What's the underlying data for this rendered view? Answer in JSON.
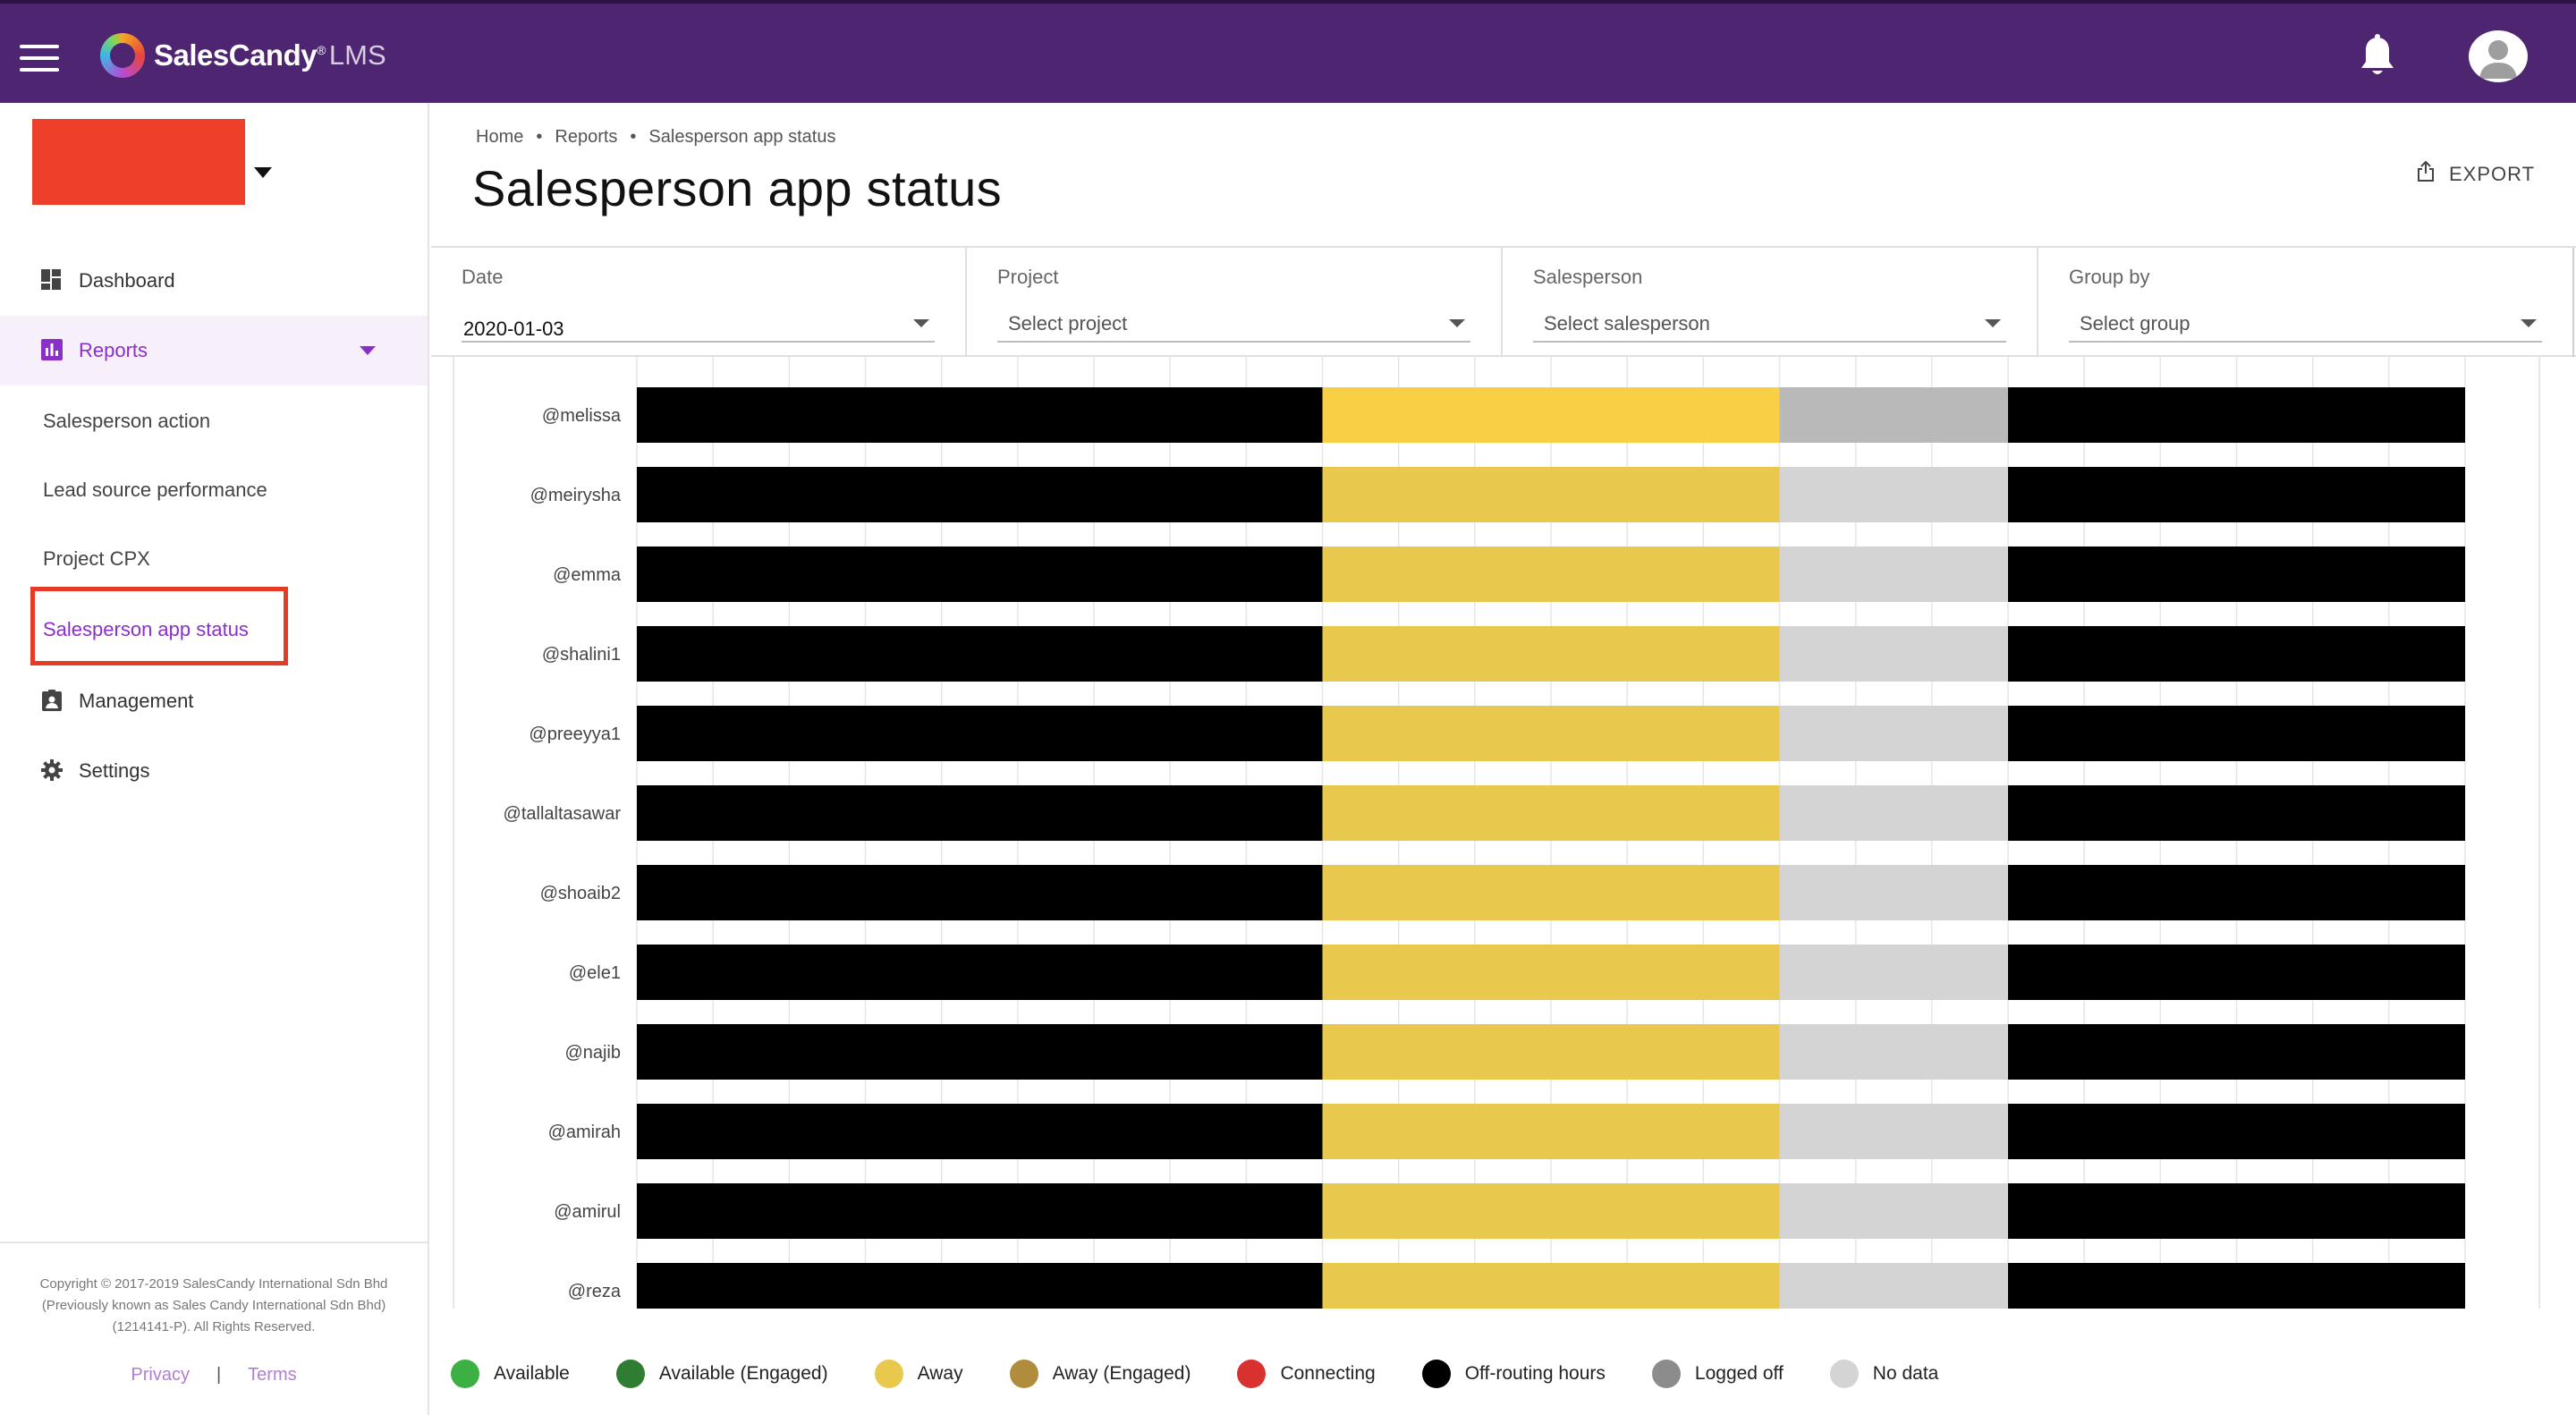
{
  "header": {
    "brand": "SalesCandy",
    "brand_mark": "®",
    "brand_sub": "LMS",
    "icons": [
      "menu-icon",
      "bell-icon",
      "user-avatar-icon"
    ],
    "brand_color": "#4e2570"
  },
  "sidebar": {
    "nav": {
      "dashboard": "Dashboard",
      "reports": "Reports",
      "management": "Management",
      "settings": "Settings"
    },
    "sub_items": [
      "Salesperson action",
      "Lead source performance",
      "Project CPX",
      "Salesperson app status"
    ],
    "active_sub": "Salesperson app status",
    "accent_color": "#8b2fc9",
    "footer": {
      "copyright_1": "Copyright © 2017-2019 SalesCandy International Sdn Bhd",
      "copyright_2": "(Previously known as Sales Candy International Sdn Bhd)",
      "copyright_3": "(1214141-P). All Rights Reserved.",
      "privacy": "Privacy",
      "separator": "|",
      "terms": "Terms"
    }
  },
  "breadcrumb": {
    "home": "Home",
    "reports": "Reports",
    "current": "Salesperson app status",
    "separator": "•"
  },
  "page": {
    "title": "Salesperson app status",
    "export_label": "EXPORT"
  },
  "filters": {
    "date": {
      "label": "Date",
      "value": "2020-01-03"
    },
    "project": {
      "label": "Project",
      "placeholder": "Select project"
    },
    "salesperson": {
      "label": "Salesperson",
      "placeholder": "Select salesperson"
    },
    "group_by": {
      "label": "Group by",
      "placeholder": "Select group"
    }
  },
  "chart_data": {
    "type": "bar",
    "orientation": "horizontal",
    "stacked": true,
    "categories": [
      "@melissa",
      "@meirysha",
      "@emma",
      "@shalini1",
      "@preeyya1",
      "@tallaltasawar",
      "@shoaib2",
      "@ele1",
      "@najib",
      "@amirah",
      "@amirul",
      "@reza"
    ],
    "x_range": [
      0,
      24
    ],
    "grid": true,
    "segments": [
      {
        "status": "Off-routing hours",
        "start": 0,
        "end": 9
      },
      {
        "status": "Away",
        "start": 9,
        "end": 15
      },
      {
        "status": "No data",
        "start": 15,
        "end": 18
      },
      {
        "status": "Off-routing hours",
        "start": 18,
        "end": 24
      }
    ],
    "first_row_highlighted": true,
    "legend": [
      {
        "name": "Available",
        "color": "#3cb043"
      },
      {
        "name": "Available (Engaged)",
        "color": "#2e7d32"
      },
      {
        "name": "Away",
        "color": "#e8c94e"
      },
      {
        "name": "Away (Engaged)",
        "color": "#b08d3c"
      },
      {
        "name": "Connecting",
        "color": "#d93030"
      },
      {
        "name": "Off-routing hours",
        "color": "#000000"
      },
      {
        "name": "Logged off",
        "color": "#8c8c8c"
      },
      {
        "name": "No data",
        "color": "#d4d4d4"
      }
    ],
    "legend_position": "bottom"
  }
}
